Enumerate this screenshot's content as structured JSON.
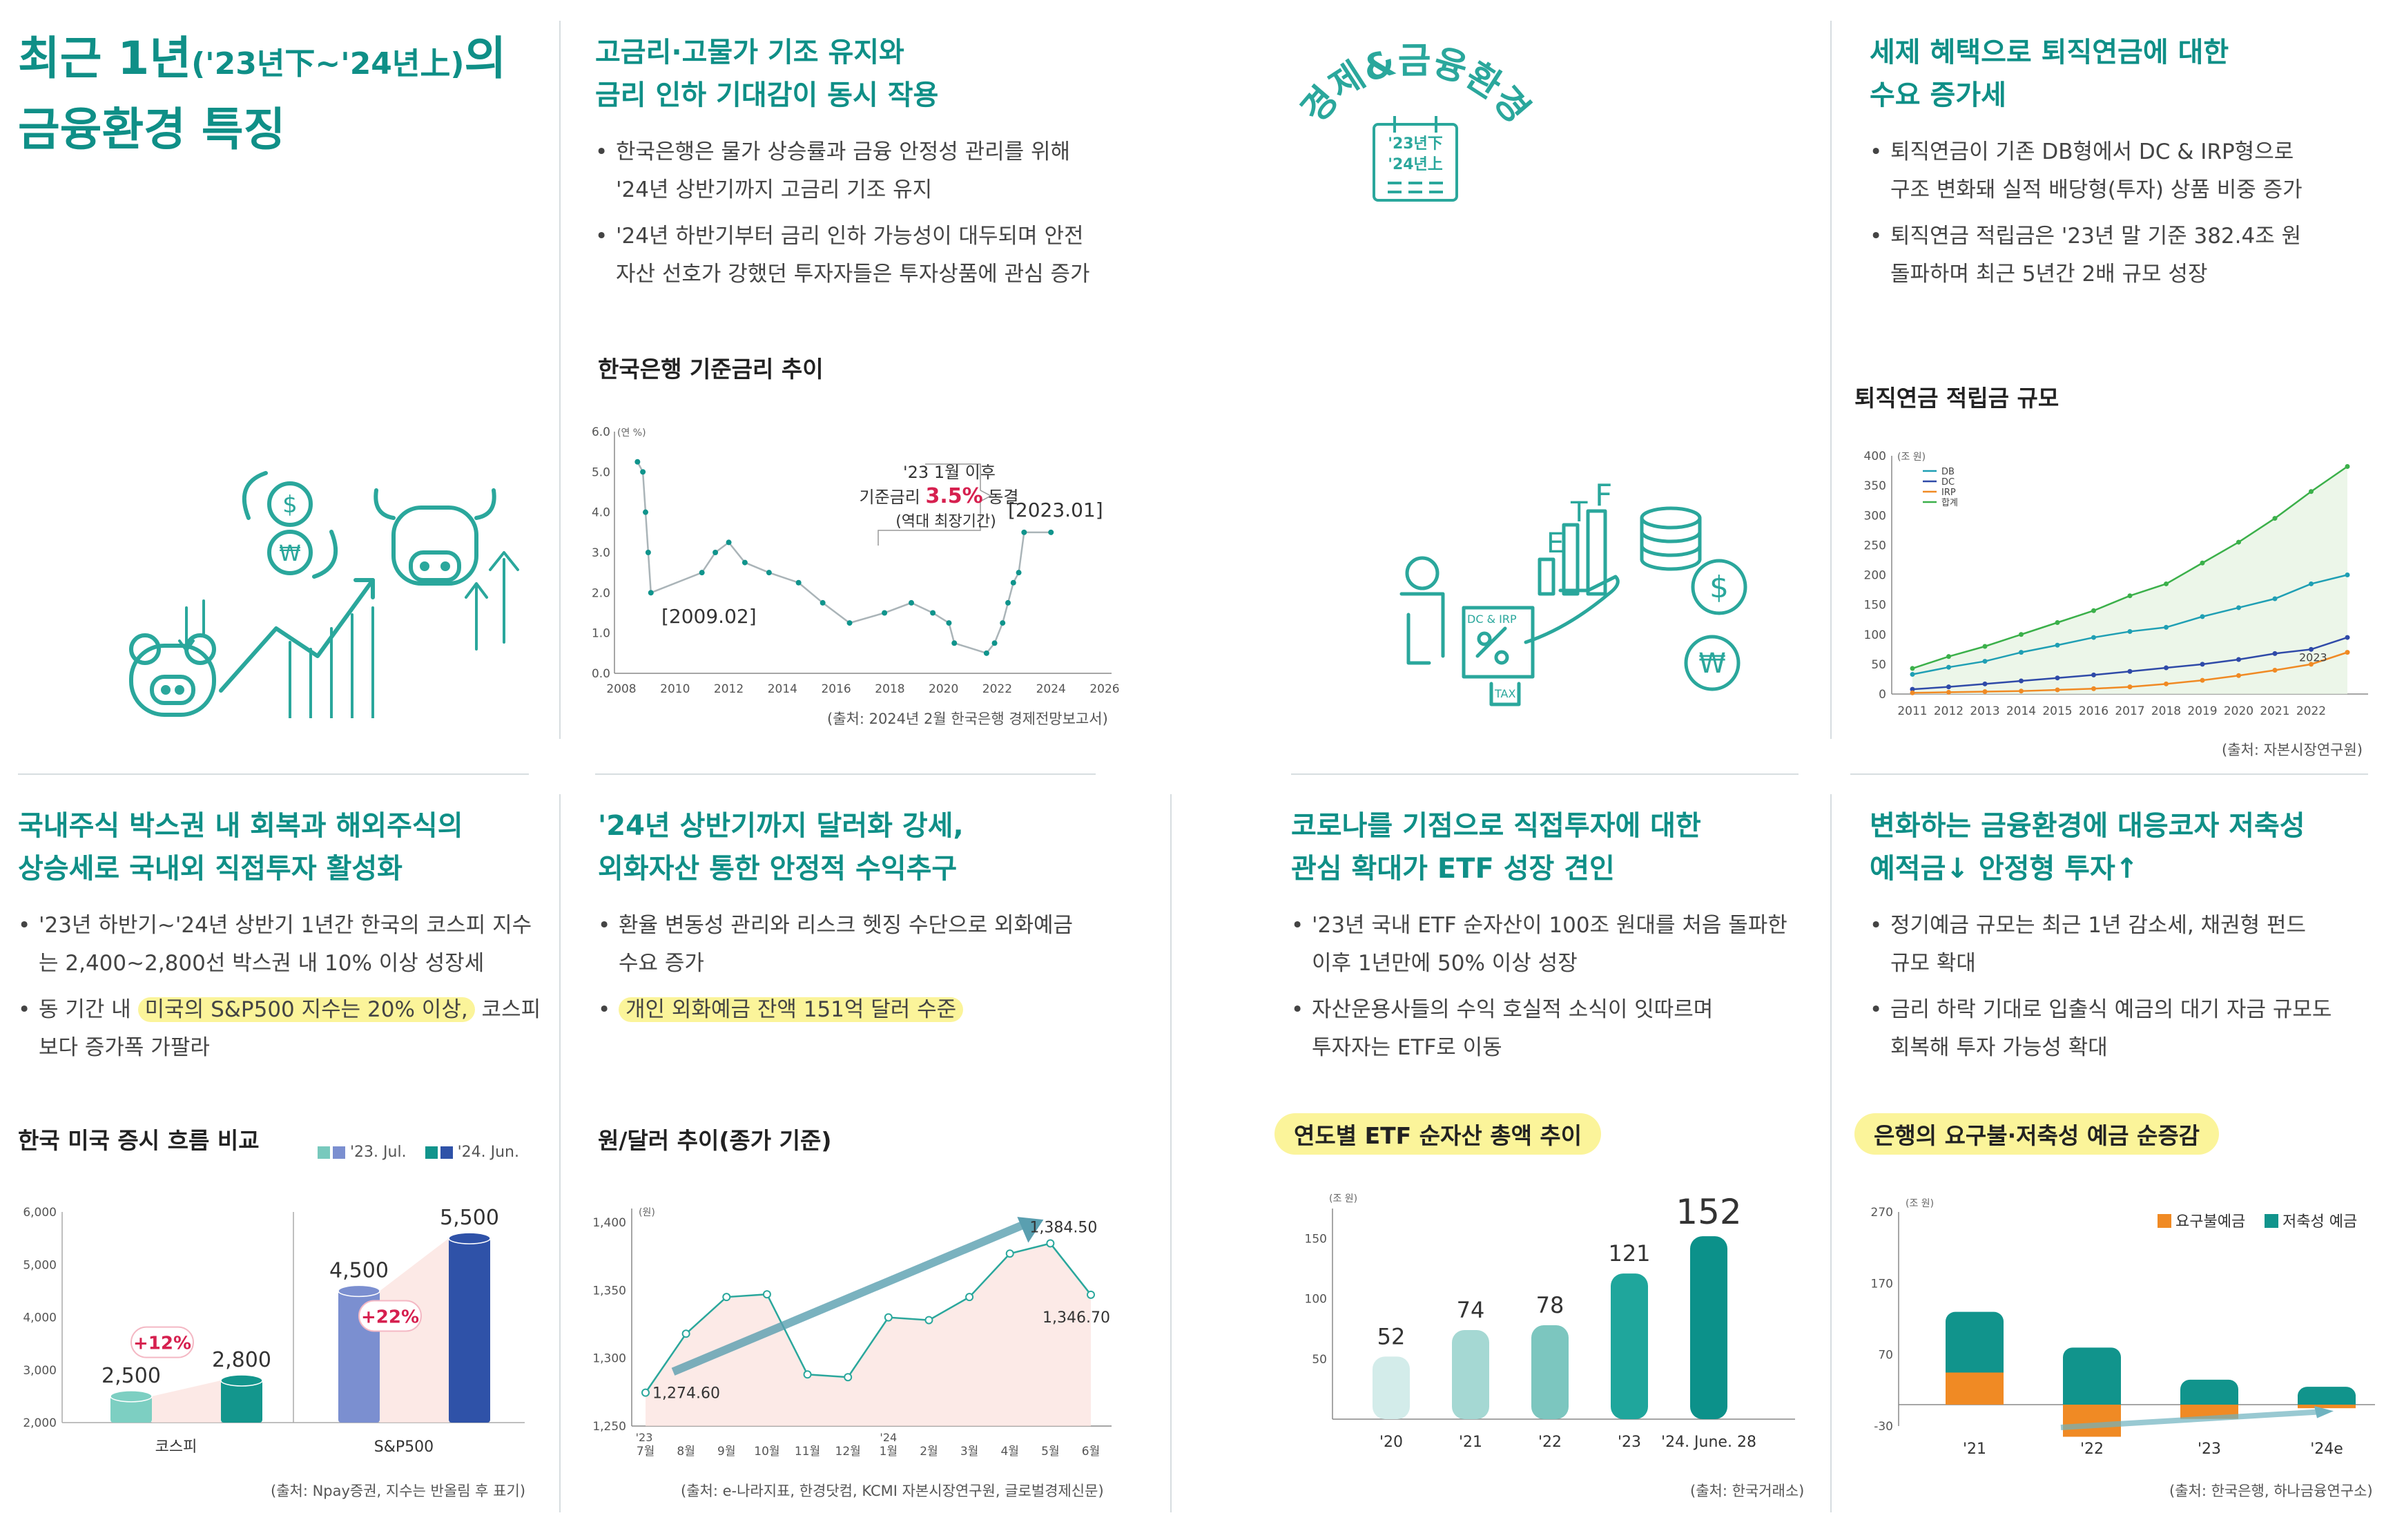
{
  "page": {
    "title_line1_main": "최근 1년",
    "title_line1_sub": "('23년下~'24년上)",
    "title_line1_end": "의",
    "title_line2": "금융환경 특징"
  },
  "badge": {
    "arc_text": "경제&금융환경",
    "cal_line1": "'23년下",
    "cal_line2": "'24년上"
  },
  "sections": {
    "rate": {
      "heading1": "고금리·고물가 기조 유지와",
      "heading2": "금리 인하 기대감이 동시 작용",
      "bullets": [
        {
          "l1": "한국은행은 물가 상승률과 금융 안정성 관리를 위해",
          "l2": "'24년 상반기까지 고금리 기조 유지"
        },
        {
          "l1": "'24년 하반기부터 금리 인하 가능성이 대두되며 안전",
          "l2": "자산 선호가 강했던 투자자들은 투자상품에 관심 증가"
        }
      ],
      "chart_title": "한국은행 기준금리 추이",
      "source": "(출처: 2024년 2월 한국은행 경제전망보고서)"
    },
    "pension": {
      "heading1": "세제 혜택으로 퇴직연금에 대한",
      "heading2": "수요 증가세",
      "bullets": [
        {
          "l1": "퇴직연금이 기존 DB형에서 DC & IRP형으로",
          "l2": "구조 변화돼 실적 배당형(투자) 상품 비중 증가"
        },
        {
          "l1": "퇴직연금 적립금은 '23년 말 기준 382.4조 원",
          "l2": "돌파하며 최근 5년간 2배 규모 성장"
        }
      ],
      "chart_title": "퇴직연금 적립금 규모",
      "source": "(출처: 자본시장연구원)"
    },
    "stock": {
      "heading1": "국내주식 박스권 내 회복과 해외주식의",
      "heading2": "상승세로 국내외 직접투자 활성화",
      "bullet1_l1": "'23년 하반기~'24년 상반기 1년간 한국의 코스피 지수",
      "bullet1_l2": "는 2,400~2,800선 박스권 내 10% 이상 성장세",
      "bullet2_pre": "동 기간 내 ",
      "bullet2_hl": "미국의 S&P500 지수는 20% 이상,",
      "bullet2_post": " 코스피",
      "bullet2_l2": "보다 증가폭 가팔라",
      "chart_title": "한국 미국 증시 흐름 비교",
      "legend1": "'23. Jul.",
      "legend2": "'24. Jun.",
      "source": "(출처: Npay증권, 지수는 반올림 후 표기)"
    },
    "fx": {
      "heading1": "'24년 상반기까지 달러화 강세,",
      "heading2": "외화자산 통한 안정적 수익추구",
      "bullet1_l1": "환율 변동성 관리와 리스크 헷징 수단으로 외화예금",
      "bullet1_l2": "수요 증가",
      "bullet2_hl": "개인 외화예금 잔액 151억 달러 수준",
      "chart_title": "원/달러 추이(종가 기준)",
      "source": "(출처: e-나라지표, 한경닷컴, KCMI 자본시장연구원, 글로벌경제신문)"
    },
    "etf": {
      "heading1": "코로나를 기점으로 직접투자에 대한",
      "heading2": "관심 확대가 ETF 성장 견인",
      "bullets": [
        {
          "l1": "'23년 국내 ETF 순자산이 100조 원대를 처음 돌파한",
          "l2": "이후 1년만에 50% 이상 성장"
        },
        {
          "l1": "자산운용사들의 수익 호실적 소식이 잇따르며",
          "l2": "투자자는 ETF로 이동"
        }
      ],
      "chart_title": "연도별 ETF 순자산 총액 추이",
      "source": "(출처: 한국거래소)"
    },
    "deposit": {
      "heading1": "변화하는 금융환경에 대응코자 저축성",
      "heading2": "예적금↓ 안정형 투자↑",
      "bullets": [
        {
          "l1": "정기예금 규모는 최근 1년 감소세, 채권형 펀드",
          "l2": "규모 확대"
        },
        {
          "l1": "금리 하락 기대로 입출식 예금의 대기 자금 규모도",
          "l2": "회복해 투자 가능성 확대"
        }
      ],
      "chart_title": "은행의 요구불·저축성 예금 순증감",
      "source": "(출처: 한국은행, 하나금융연구소)"
    }
  },
  "illustration": {
    "etf_letters": [
      "E",
      "T",
      "F"
    ],
    "dc_irp_label": "DC & IRP",
    "tax_label": "TAX",
    "dollar_symbol": "$",
    "won_symbol": "₩"
  },
  "colors": {
    "teal": "#0f8f87",
    "highlight": "#fbf49a",
    "red": "#d6204f",
    "orange": "#f08a24"
  },
  "chart_data": [
    {
      "id": "base-rate",
      "type": "line",
      "title": "한국은행 기준금리 추이",
      "ylabel": "(연 %)",
      "ylim": [
        0,
        6
      ],
      "yticks": [
        "0.0",
        "1.0",
        "2.0",
        "3.0",
        "4.0",
        "5.0",
        "6.0"
      ],
      "xticks": [
        "2008",
        "2010",
        "2012",
        "2014",
        "2016",
        "2018",
        "2020",
        "2022",
        "2024",
        "2026"
      ],
      "x": [
        2008.6,
        2008.8,
        2008.9,
        2009.0,
        2009.1,
        2011.0,
        2011.5,
        2012.0,
        2012.6,
        2013.5,
        2014.6,
        2015.5,
        2016.5,
        2017.8,
        2018.8,
        2019.6,
        2020.2,
        2020.4,
        2021.6,
        2021.9,
        2022.2,
        2022.4,
        2022.6,
        2022.8,
        2023.0,
        2024.0
      ],
      "values": [
        5.25,
        5.0,
        4.0,
        3.0,
        2.0,
        2.5,
        3.0,
        3.25,
        2.75,
        2.5,
        2.25,
        1.75,
        1.25,
        1.5,
        1.75,
        1.5,
        1.25,
        0.75,
        0.5,
        0.75,
        1.25,
        1.75,
        2.25,
        2.5,
        3.5,
        3.5
      ],
      "annotations": {
        "label_2009": "[2009.02]",
        "label_2023": "[2023.01]",
        "callout_l1": "'23 1월 이후",
        "callout_l2_pre": "기준금리 ",
        "callout_l2_hl": "3.5%",
        "callout_l2_post": " 동결",
        "callout_l3": "(역대 최장기간)"
      }
    },
    {
      "id": "pension",
      "type": "line",
      "title": "퇴직연금 적립금 규모",
      "ylabel": "(조 원)",
      "ylim": [
        0,
        400
      ],
      "yticks": [
        "0",
        "50",
        "100",
        "150",
        "200",
        "250",
        "300",
        "350",
        "400"
      ],
      "xticks": [
        "2011",
        "2012",
        "2013",
        "2014",
        "2015",
        "2016",
        "2017",
        "2018",
        "2019",
        "2020",
        "2021",
        "2022"
      ],
      "x": [
        2011,
        2012,
        2013,
        2014,
        2015,
        2016,
        2017,
        2018,
        2019,
        2020,
        2021,
        2022,
        2023
      ],
      "series": [
        {
          "name": "DB",
          "color": "#1f9fb4",
          "values": [
            33,
            45,
            55,
            70,
            82,
            95,
            105,
            112,
            130,
            145,
            160,
            185,
            200
          ]
        },
        {
          "name": "DC",
          "color": "#2f4aa8",
          "values": [
            8,
            12,
            17,
            22,
            27,
            32,
            38,
            44,
            50,
            58,
            68,
            75,
            95
          ]
        },
        {
          "name": "IRP",
          "color": "#f08a24",
          "values": [
            2,
            3,
            4,
            5,
            7,
            9,
            12,
            17,
            23,
            31,
            40,
            50,
            70
          ]
        },
        {
          "name": "합계",
          "color": "#3bb04a",
          "values": [
            43,
            63,
            80,
            100,
            120,
            140,
            165,
            185,
            220,
            255,
            295,
            340,
            382
          ]
        }
      ],
      "annotation": "2023"
    },
    {
      "id": "stocks",
      "type": "bar",
      "title": "한국 미국 증시 흐름 비교",
      "ylim": [
        2000,
        6000
      ],
      "yticks": [
        "2,000",
        "3,000",
        "4,000",
        "5,000",
        "6,000"
      ],
      "categories": [
        "코스피",
        "S&P500"
      ],
      "series": [
        {
          "name": "'23. Jul.",
          "values": [
            2500,
            4500
          ],
          "labels": [
            "2,500",
            "4,500"
          ]
        },
        {
          "name": "'24. Jun.",
          "values": [
            2800,
            5500
          ],
          "labels": [
            "2,800",
            "5,500"
          ]
        }
      ],
      "changes": [
        "+12%",
        "+22%"
      ]
    },
    {
      "id": "fx",
      "type": "line",
      "title": "원/달러 추이(종가 기준)",
      "ylabel": "(원)",
      "ylim": [
        1250,
        1400
      ],
      "yticks": [
        "1,250",
        "1,300",
        "1,350",
        "1,400"
      ],
      "categories": [
        "7월",
        "8월",
        "9월",
        "10월",
        "11월",
        "12월",
        "1월",
        "2월",
        "3월",
        "4월",
        "5월",
        "6월"
      ],
      "year_labels": [
        "'23",
        "'24"
      ],
      "values": [
        1274.6,
        1318,
        1345,
        1347,
        1288,
        1286,
        1330,
        1328,
        1345,
        1377,
        1384.5,
        1346.7
      ],
      "labels": {
        "first": "1,274.60",
        "peak": "1,384.50",
        "last": "1,346.70"
      }
    },
    {
      "id": "etf",
      "type": "bar",
      "title": "연도별 ETF 순자산 총액 추이",
      "ylabel": "(조 원)",
      "ylim": [
        0,
        175
      ],
      "yticks": [
        "50",
        "100",
        "150"
      ],
      "categories": [
        "'20",
        "'21",
        "'22",
        "'23",
        "'24. June. 28"
      ],
      "values": [
        52,
        74,
        78,
        121,
        152
      ]
    },
    {
      "id": "deposit",
      "type": "bar",
      "title": "은행의 요구불·저축성 예금 순증감",
      "ylabel": "(조 원)",
      "ylim": [
        -30,
        270
      ],
      "yticks": [
        "-30",
        "70",
        "170",
        "270"
      ],
      "categories": [
        "'21",
        "'22",
        "'23",
        "'24e"
      ],
      "series": [
        {
          "name": "요구불예금",
          "color": "#f08a24",
          "values": [
            45,
            -45,
            -20,
            -5
          ]
        },
        {
          "name": "저축성 예금",
          "color": "#11948c",
          "values": [
            85,
            80,
            35,
            25
          ]
        }
      ]
    }
  ]
}
